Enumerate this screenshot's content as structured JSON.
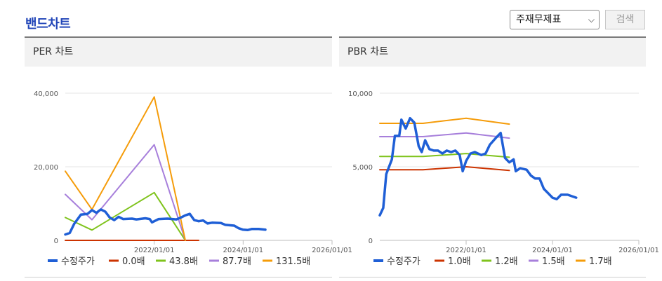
{
  "page_title": "밴드차트",
  "select": {
    "value": "주재무제표"
  },
  "search_button": "검색",
  "colors": {
    "price": "#1f5fd6",
    "b1": "#cc3300",
    "b2": "#7fc31c",
    "b3": "#a77fdb",
    "b4": "#f59c0a"
  },
  "chart_data": [
    {
      "type": "line",
      "title": "PER 차트",
      "xlim": [
        2020.0,
        2026.0
      ],
      "ylim": [
        0,
        40000
      ],
      "yticks": [
        {
          "v": 0,
          "label": "0"
        },
        {
          "v": 20000,
          "label": "20,000"
        },
        {
          "v": 40000,
          "label": "40,000"
        }
      ],
      "xticks": [
        {
          "v": 2022.0,
          "label": "2022/01/01"
        },
        {
          "v": 2024.0,
          "label": "2024/01/01"
        },
        {
          "v": 2026.0,
          "label": "2026/01/01"
        }
      ],
      "legend": [
        "수정주가",
        "0.0배",
        "43.8배",
        "87.7배",
        "131.5배"
      ],
      "series": [
        {
          "name": "수정주가",
          "color": "#1f5fd6",
          "width": 3.5,
          "points": [
            [
              2020.0,
              1600
            ],
            [
              2020.1,
              2000
            ],
            [
              2020.2,
              4500
            ],
            [
              2020.35,
              7000
            ],
            [
              2020.5,
              7200
            ],
            [
              2020.6,
              8200
            ],
            [
              2020.7,
              7500
            ],
            [
              2020.8,
              8400
            ],
            [
              2020.9,
              7800
            ],
            [
              2021.0,
              6200
            ],
            [
              2021.1,
              5500
            ],
            [
              2021.2,
              6400
            ],
            [
              2021.3,
              5800
            ],
            [
              2021.5,
              5900
            ],
            [
              2021.6,
              5700
            ],
            [
              2021.8,
              6000
            ],
            [
              2021.9,
              5800
            ],
            [
              2021.95,
              4900
            ],
            [
              2022.1,
              5800
            ],
            [
              2022.3,
              5900
            ],
            [
              2022.5,
              5700
            ],
            [
              2022.6,
              6200
            ],
            [
              2022.7,
              6800
            ],
            [
              2022.8,
              7200
            ],
            [
              2022.9,
              5500
            ],
            [
              2023.0,
              5200
            ],
            [
              2023.1,
              5400
            ],
            [
              2023.2,
              4600
            ],
            [
              2023.3,
              4800
            ],
            [
              2023.5,
              4700
            ],
            [
              2023.6,
              4200
            ],
            [
              2023.8,
              4000
            ],
            [
              2023.9,
              3300
            ],
            [
              2024.0,
              2900
            ],
            [
              2024.1,
              2800
            ],
            [
              2024.2,
              3100
            ],
            [
              2024.35,
              3100
            ],
            [
              2024.5,
              2900
            ]
          ]
        },
        {
          "name": "0.0배",
          "color": "#cc3300",
          "width": 2,
          "points": [
            [
              2020.0,
              0
            ],
            [
              2021.0,
              0
            ],
            [
              2022.0,
              0
            ],
            [
              2022.7,
              0
            ],
            [
              2023.0,
              0
            ]
          ]
        },
        {
          "name": "43.8배",
          "color": "#7fc31c",
          "width": 2,
          "points": [
            [
              2020.0,
              6200
            ],
            [
              2020.6,
              2800
            ],
            [
              2022.0,
              13000
            ],
            [
              2022.7,
              0
            ]
          ]
        },
        {
          "name": "87.7배",
          "color": "#a77fdb",
          "width": 2,
          "points": [
            [
              2020.0,
              12500
            ],
            [
              2020.6,
              5600
            ],
            [
              2022.0,
              26000
            ],
            [
              2022.7,
              0
            ]
          ]
        },
        {
          "name": "131.5배",
          "color": "#f59c0a",
          "width": 2,
          "points": [
            [
              2020.0,
              18800
            ],
            [
              2020.6,
              8400
            ],
            [
              2022.0,
              39000
            ],
            [
              2022.7,
              0
            ]
          ]
        }
      ]
    },
    {
      "type": "line",
      "title": "PBR 차트",
      "xlim": [
        2020.0,
        2026.0
      ],
      "ylim": [
        0,
        10000
      ],
      "yticks": [
        {
          "v": 0,
          "label": "0"
        },
        {
          "v": 5000,
          "label": "5,000"
        },
        {
          "v": 10000,
          "label": "10,000"
        }
      ],
      "xticks": [
        {
          "v": 2022.0,
          "label": "2022/01/01"
        },
        {
          "v": 2024.0,
          "label": "2024/01/01"
        },
        {
          "v": 2026.0,
          "label": "2026/01/01"
        }
      ],
      "legend": [
        "수정주가",
        "1.0배",
        "1.2배",
        "1.5배",
        "1.7배"
      ],
      "series": [
        {
          "name": "수정주가",
          "color": "#1f5fd6",
          "width": 3.5,
          "points": [
            [
              2020.0,
              1700
            ],
            [
              2020.08,
              2200
            ],
            [
              2020.15,
              4500
            ],
            [
              2020.28,
              5500
            ],
            [
              2020.35,
              7100
            ],
            [
              2020.45,
              7100
            ],
            [
              2020.5,
              8200
            ],
            [
              2020.6,
              7600
            ],
            [
              2020.7,
              8300
            ],
            [
              2020.8,
              8000
            ],
            [
              2020.9,
              6400
            ],
            [
              2020.97,
              6000
            ],
            [
              2021.05,
              6800
            ],
            [
              2021.15,
              6200
            ],
            [
              2021.25,
              6100
            ],
            [
              2021.35,
              6100
            ],
            [
              2021.45,
              5900
            ],
            [
              2021.55,
              6100
            ],
            [
              2021.65,
              6000
            ],
            [
              2021.75,
              6100
            ],
            [
              2021.85,
              5800
            ],
            [
              2021.92,
              4700
            ],
            [
              2022.0,
              5400
            ],
            [
              2022.1,
              5900
            ],
            [
              2022.2,
              6000
            ],
            [
              2022.35,
              5800
            ],
            [
              2022.45,
              5900
            ],
            [
              2022.55,
              6500
            ],
            [
              2022.7,
              7000
            ],
            [
              2022.8,
              7300
            ],
            [
              2022.9,
              5600
            ],
            [
              2023.0,
              5300
            ],
            [
              2023.1,
              5500
            ],
            [
              2023.15,
              4700
            ],
            [
              2023.25,
              4900
            ],
            [
              2023.4,
              4800
            ],
            [
              2023.5,
              4400
            ],
            [
              2023.6,
              4200
            ],
            [
              2023.7,
              4200
            ],
            [
              2023.8,
              3500
            ],
            [
              2023.9,
              3200
            ],
            [
              2024.0,
              2900
            ],
            [
              2024.1,
              2800
            ],
            [
              2024.2,
              3100
            ],
            [
              2024.35,
              3100
            ],
            [
              2024.55,
              2900
            ]
          ]
        },
        {
          "name": "1.0배",
          "color": "#cc3300",
          "width": 2,
          "points": [
            [
              2020.0,
              4800
            ],
            [
              2021.0,
              4800
            ],
            [
              2022.0,
              5000
            ],
            [
              2023.0,
              4750
            ]
          ]
        },
        {
          "name": "1.2배",
          "color": "#7fc31c",
          "width": 2,
          "points": [
            [
              2020.0,
              5700
            ],
            [
              2021.0,
              5700
            ],
            [
              2022.0,
              5900
            ],
            [
              2023.0,
              5650
            ]
          ]
        },
        {
          "name": "1.5배",
          "color": "#a77fdb",
          "width": 2,
          "points": [
            [
              2020.0,
              7050
            ],
            [
              2021.0,
              7050
            ],
            [
              2022.0,
              7300
            ],
            [
              2023.0,
              6950
            ]
          ]
        },
        {
          "name": "1.7배",
          "color": "#f59c0a",
          "width": 2,
          "points": [
            [
              2020.0,
              7950
            ],
            [
              2021.0,
              7950
            ],
            [
              2022.0,
              8300
            ],
            [
              2023.0,
              7900
            ]
          ]
        }
      ]
    }
  ]
}
